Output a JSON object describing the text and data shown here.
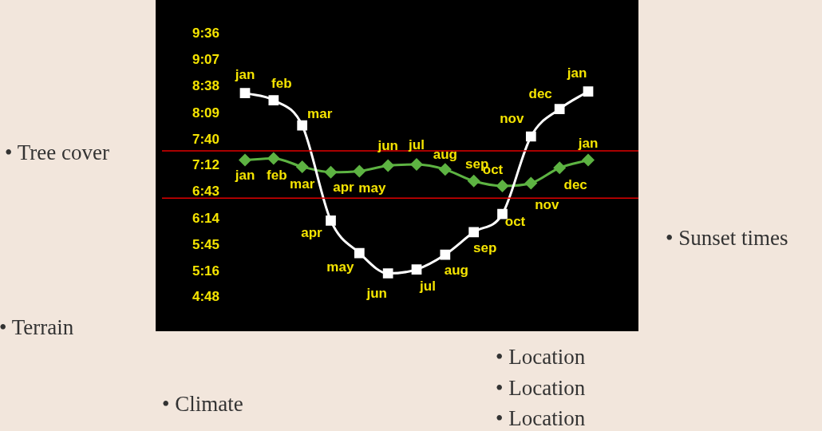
{
  "chart_data": {
    "type": "line",
    "categories": [
      null,
      null,
      null,
      null,
      null,
      null,
      null,
      null,
      null,
      null,
      null,
      null,
      null
    ],
    "series": [
      {
        "color": "#ffffff",
        "marker": "square",
        "values": [
          8.52,
          8.39,
          7.93,
          6.2,
          5.61,
          5.24,
          5.31,
          5.58,
          5.99,
          6.32,
          7.73,
          8.23,
          8.55
        ],
        "value_labels": [
          "jan",
          "feb",
          "mar",
          "apr",
          "may",
          "jun",
          "jul",
          "aug",
          "sep",
          "oct",
          "nov",
          "dec",
          "jan"
        ]
      },
      {
        "color": "#5db342",
        "marker": "diamond",
        "values": [
          7.3,
          7.33,
          7.18,
          7.08,
          7.1,
          7.2,
          7.22,
          7.13,
          6.92,
          6.83,
          6.88,
          7.16,
          7.3
        ],
        "value_labels": [
          "jan",
          "feb",
          "mar",
          "apr",
          "may",
          "jun",
          "jul",
          "aug",
          "sep",
          "oct",
          "nov",
          "dec",
          "jan"
        ]
      }
    ],
    "ylim": [
      4.8,
      9.6
    ],
    "yticks": [
      {
        "value": 4.8,
        "label": "4:48"
      },
      {
        "value": 5.2667,
        "label": "5:16"
      },
      {
        "value": 5.75,
        "label": "5:45"
      },
      {
        "value": 6.2333,
        "label": "6:14"
      },
      {
        "value": 6.7167,
        "label": "6:43"
      },
      {
        "value": 7.2,
        "label": "7:12"
      },
      {
        "value": 7.6667,
        "label": "7:40"
      },
      {
        "value": 8.15,
        "label": "8:09"
      },
      {
        "value": 8.6333,
        "label": "8:38"
      },
      {
        "value": 9.1167,
        "label": "9:07"
      },
      {
        "value": 9.6,
        "label": "9:36"
      }
    ],
    "ref_lines": [
      {
        "axis": "y",
        "value": 7.47,
        "color": "#e00000"
      },
      {
        "axis": "y",
        "value": 6.61,
        "color": "#e00000"
      }
    ],
    "grid": false,
    "legend": false,
    "tick_labels": "y",
    "line_style": "solid",
    "annotations": [
      "• Tree cover",
      "• Sunset times",
      "• Terrain",
      "• Location",
      "• Location",
      "• Location",
      "• Climate"
    ]
  }
}
